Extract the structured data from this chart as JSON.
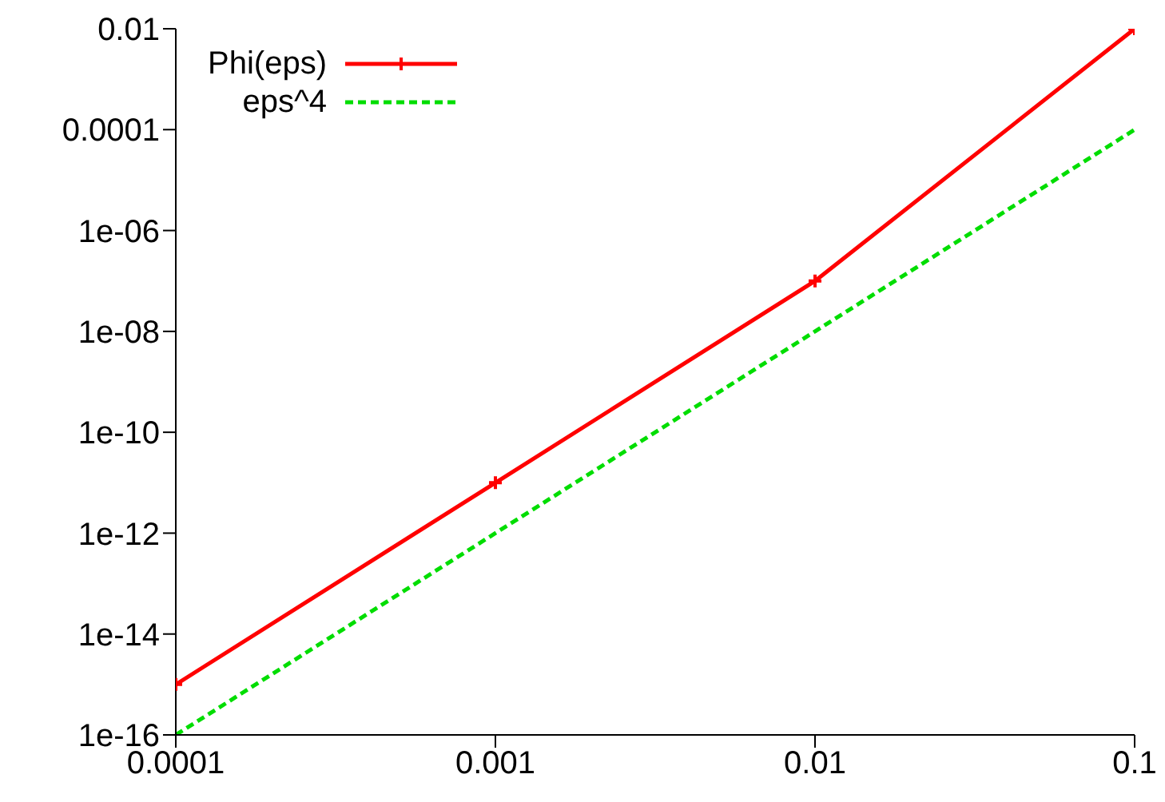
{
  "chart_data": {
    "type": "line",
    "x": [
      0.0001,
      0.001,
      0.01,
      0.1
    ],
    "series": [
      {
        "name": "Phi(eps)",
        "color": "#ff0000",
        "values": [
          1e-15,
          1e-11,
          1e-07,
          0.01
        ],
        "marker": "cross",
        "line_style": "solid"
      },
      {
        "name": "eps^4",
        "color": "#00dd00",
        "values": [
          1e-16,
          1e-12,
          1e-08,
          0.0001
        ],
        "marker": "none",
        "line_style": "dashed"
      }
    ],
    "log": "xy",
    "xlim": [
      0.0001,
      0.1
    ],
    "xticks": [
      0.0001,
      0.001,
      0.01,
      0.1
    ],
    "ylim": [
      1e-16,
      0.01
    ],
    "yticks": [
      {
        "value": 1e-16,
        "label": "1e-16"
      },
      {
        "value": 1e-14,
        "label": "1e-14"
      },
      {
        "value": 1e-12,
        "label": "1e-12"
      },
      {
        "value": 1e-10,
        "label": "1e-10"
      },
      {
        "value": 1e-08,
        "label": "1e-08"
      },
      {
        "value": 1e-06,
        "label": "1e-06"
      },
      {
        "value": 0.0001,
        "label": "0.0001"
      },
      {
        "value": 0.01,
        "label": "0.01"
      }
    ],
    "grid": false,
    "legend": "top left"
  }
}
